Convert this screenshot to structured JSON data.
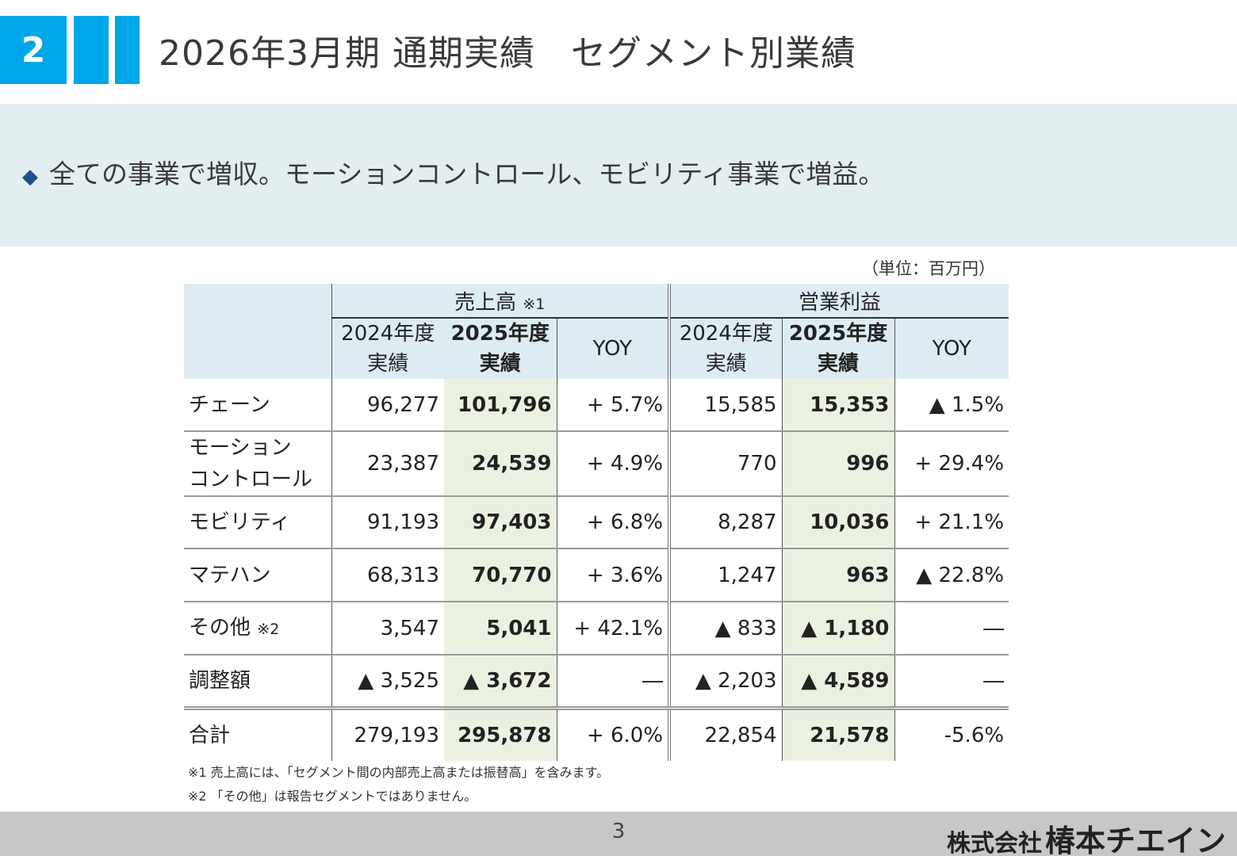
{
  "slide": {
    "section_number": "2",
    "title": "2026年3月期 通期実績　セグメント別業績",
    "summary": "全ての事業で増収。モーションコントロール、モビリティ事業で増益。",
    "summary_bullet": "◆",
    "unit": "（単位：百万円）",
    "page_number": "3",
    "company_prefix": "株式会社",
    "company_name": "椿本チエイン"
  },
  "table": {
    "groups": [
      {
        "label": "売上高",
        "note": "※1"
      },
      {
        "label": "営業利益",
        "note": ""
      }
    ],
    "subheaders": [
      {
        "line1": "2024年度",
        "line2": "実績"
      },
      {
        "line1": "2025年度",
        "line2": "実績"
      },
      {
        "line1": "YOY",
        "line2": ""
      },
      {
        "line1": "2024年度",
        "line2": "実績"
      },
      {
        "line1": "2025年度",
        "line2": "実績"
      },
      {
        "line1": "YOY",
        "line2": ""
      }
    ],
    "rows": [
      {
        "label_line1": "チェーン",
        "label_line2": "",
        "note": "",
        "cells": [
          "96,277",
          "101,796",
          "+ 5.7%",
          "15,585",
          "15,353",
          "▲ 1.5%"
        ]
      },
      {
        "label_line1": "モーション",
        "label_line2": "コントロール",
        "note": "",
        "cells": [
          "23,387",
          "24,539",
          "+ 4.9%",
          "770",
          "996",
          "+ 29.4%"
        ]
      },
      {
        "label_line1": "モビリティ",
        "label_line2": "",
        "note": "",
        "cells": [
          "91,193",
          "97,403",
          "+ 6.8%",
          "8,287",
          "10,036",
          "+ 21.1%"
        ]
      },
      {
        "label_line1": "マテハン",
        "label_line2": "",
        "note": "",
        "cells": [
          "68,313",
          "70,770",
          "+ 3.6%",
          "1,247",
          "963",
          "▲ 22.8%"
        ]
      },
      {
        "label_line1": "その他",
        "label_line2": "",
        "note": "※2",
        "cells": [
          "3,547",
          "5,041",
          "+ 42.1%",
          "▲ 833",
          "▲ 1,180",
          "―"
        ]
      },
      {
        "label_line1": "調整額",
        "label_line2": "",
        "note": "",
        "cells": [
          "▲ 3,525",
          "▲ 3,672",
          "―",
          "▲ 2,203",
          "▲ 4,589",
          "―"
        ]
      },
      {
        "label_line1": "合計",
        "label_line2": "",
        "note": "",
        "cells": [
          "279,193",
          "295,878",
          "+ 6.0%",
          "22,854",
          "21,578",
          "-5.6%"
        ]
      }
    ]
  },
  "notes": [
    "※1 売上高には、「セグメント間の内部売上高または振替高」を含みます。",
    "※2 「その他」は報告セグメントではありません。"
  ],
  "colors": {
    "accent": "#00a7e8",
    "summary_bg": "#e3eef0",
    "header_bg": "#ddecf3",
    "highlight_col": "#ebf1e1",
    "bullet": "#1f4e8c",
    "footer_bg": "#c7c7c7"
  }
}
